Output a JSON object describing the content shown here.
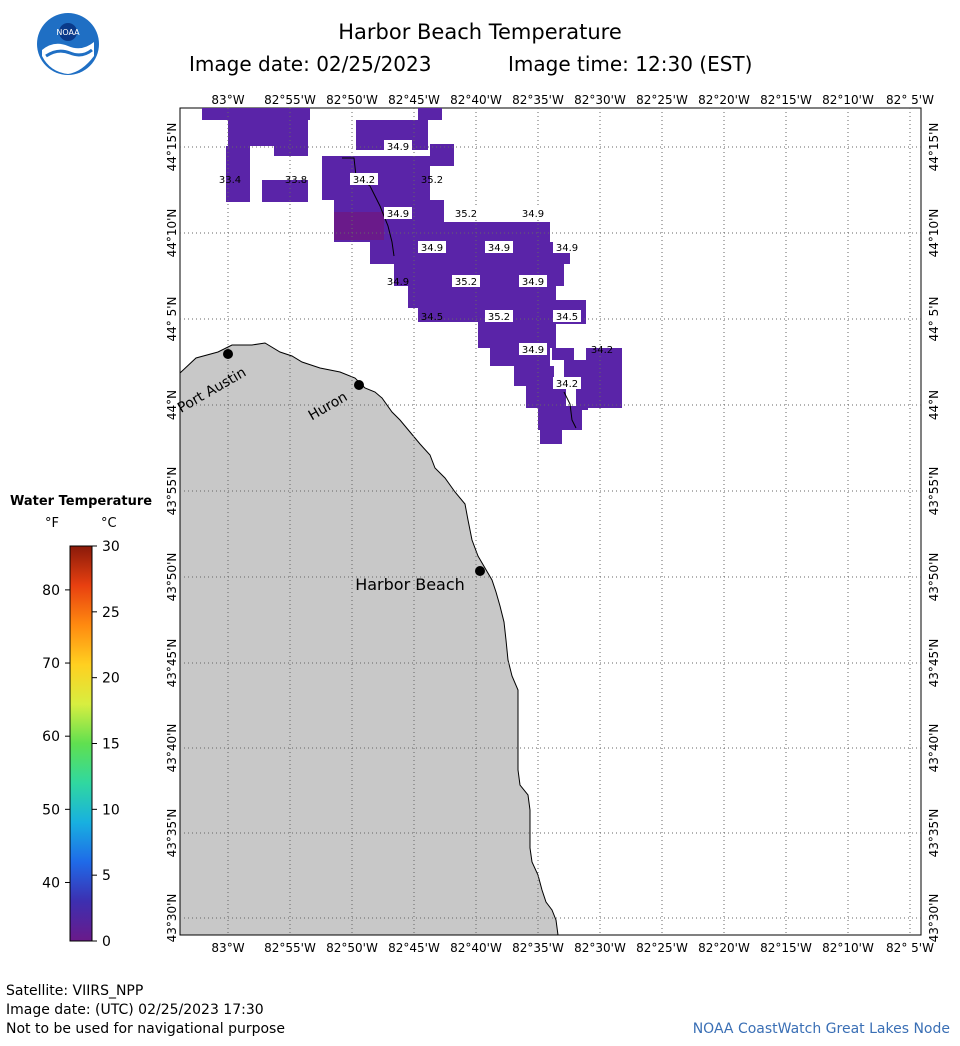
{
  "header": {
    "title": "Harbor Beach Temperature",
    "image_date": "Image date: 02/25/2023",
    "image_time": "Image time: 12:30 (EST)"
  },
  "logo": {
    "text": "NOAA",
    "icon": "noaa-logo-icon"
  },
  "axes": {
    "longitude_labels": [
      "83°W",
      "82°55'W",
      "82°50'W",
      "82°45'W",
      "82°40'W",
      "82°35'W",
      "82°30'W",
      "82°25'W",
      "82°20'W",
      "82°15'W",
      "82°10'W",
      "82° 5'W"
    ],
    "latitude_labels": [
      "44°15'N",
      "44°10'N",
      "44° 5'N",
      "44°N",
      "43°55'N",
      "43°50'N",
      "43°45'N",
      "43°40'N",
      "43°35'N",
      "43°30'N"
    ]
  },
  "places": [
    {
      "name": "Port Austin"
    },
    {
      "name": "Huron"
    },
    {
      "name": "Harbor Beach"
    }
  ],
  "temperature_readings": [
    "34.9",
    "33.4",
    "33.8",
    "34.2",
    "35.2",
    "34.9",
    "35.2",
    "34.9",
    "34.9",
    "34.9",
    "34.9",
    "34.9",
    "35.2",
    "34.9",
    "34.5",
    "35.2",
    "34.5",
    "34.9",
    "34.2",
    "34.2"
  ],
  "legend": {
    "title": "Water Temperature",
    "unit_f": "°F",
    "unit_c": "°C",
    "f_ticks": [
      "80",
      "70",
      "60",
      "50",
      "40"
    ],
    "c_ticks": [
      "30",
      "25",
      "20",
      "15",
      "10",
      "5",
      "0"
    ],
    "colors": [
      "#6a1a8a",
      "#3d2fb0",
      "#1f6ae8",
      "#18b0e0",
      "#30d8a0",
      "#60e050",
      "#d8ee40",
      "#ffd020",
      "#ff8a10",
      "#e84010",
      "#8a1a0a"
    ]
  },
  "footer": {
    "satellite": "Satellite: VIIRS_NPP",
    "utc_date": "Image date: (UTC) 02/25/2023   17:30",
    "disclaimer": "Not to be used for navigational purpose",
    "credit": "NOAA CoastWatch Great Lakes Node"
  },
  "colors": {
    "land": "#c8c8c8",
    "water_data": "#5a24a8",
    "water_dark": "#6a1a8a",
    "grid": "#666666"
  }
}
